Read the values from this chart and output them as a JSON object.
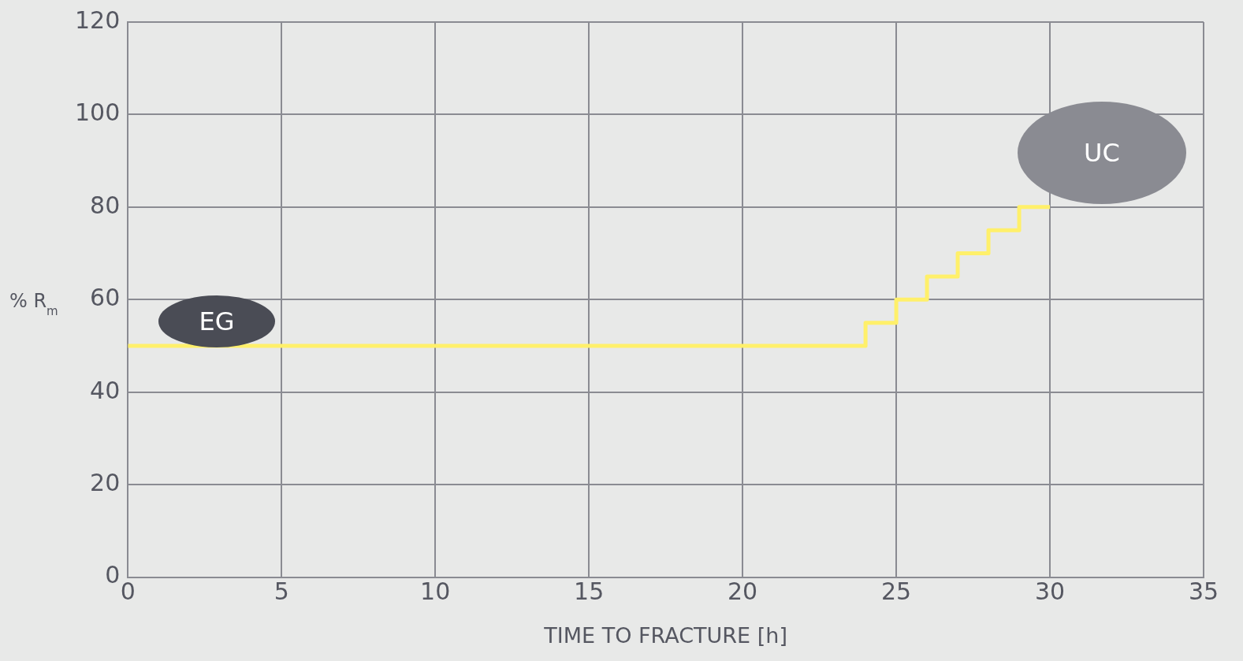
{
  "chart_data": {
    "type": "step",
    "xlabel": "TIME TO FRACTURE [h]",
    "ylabel": "% R$_{m}$",
    "x": [
      0,
      24,
      25,
      26,
      27,
      28,
      29,
      30
    ],
    "series": [
      {
        "color": "#fff06a",
        "values": [
          50,
          55,
          60,
          65,
          70,
          75,
          80,
          80
        ]
      }
    ],
    "xlim": [
      0,
      35
    ],
    "xticks": [
      0,
      5,
      10,
      15,
      20,
      25,
      30,
      35
    ],
    "ylim": [
      0,
      120
    ],
    "yticks": [
      0,
      20,
      40,
      60,
      80,
      100,
      120
    ],
    "grid": true,
    "legend": false,
    "marker": "none",
    "annotations": [
      "EG",
      "UC"
    ]
  }
}
